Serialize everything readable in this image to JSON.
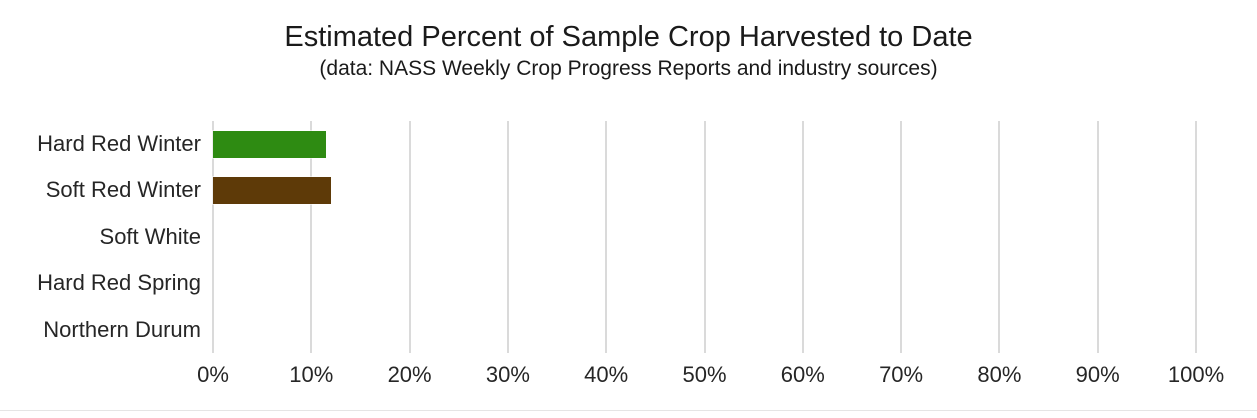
{
  "chart_data": {
    "type": "bar",
    "orientation": "horizontal",
    "title": "Estimated Percent of Sample Crop Harvested to Date",
    "subtitle": "(data: NASS Weekly Crop Progress Reports and industry sources)",
    "categories": [
      "Hard Red Winter",
      "Soft Red Winter",
      "Soft White",
      "Hard Red Spring",
      "Northern Durum"
    ],
    "values": [
      11.5,
      12,
      0,
      0,
      0
    ],
    "bar_colors": [
      "#2e8b12",
      "#5e3a08",
      null,
      null,
      null
    ],
    "xlabel": "",
    "ylabel": "",
    "xlim": [
      0,
      100
    ],
    "x_ticks": [
      0,
      10,
      20,
      30,
      40,
      50,
      60,
      70,
      80,
      90,
      100
    ],
    "x_tick_labels": [
      "0%",
      "10%",
      "20%",
      "30%",
      "40%",
      "50%",
      "60%",
      "70%",
      "80%",
      "90%",
      "100%"
    ],
    "grid": true,
    "gridline_color": "#dadada",
    "legend": "none",
    "background_color": "#ffffff"
  }
}
